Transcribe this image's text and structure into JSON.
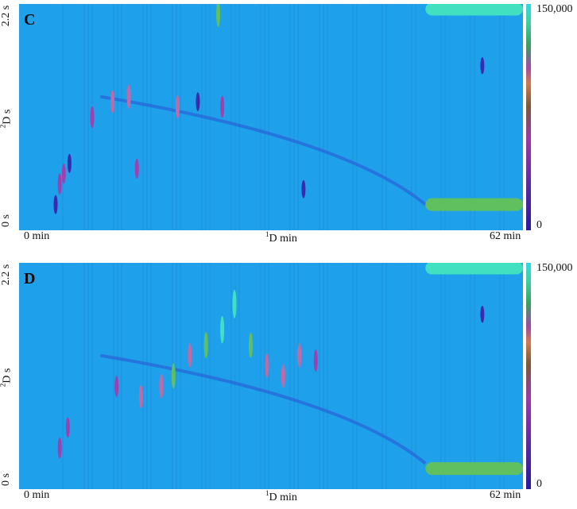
{
  "chart_data": [
    {
      "type": "heatmap",
      "panel_label": "C",
      "xlabel_prefix": "1",
      "xlabel_text": "D min",
      "ylabel_prefix": "2",
      "ylabel_text": "D s",
      "x_ticks": [
        "0 min",
        "62 min"
      ],
      "y_ticks": [
        "0 s",
        "2.2 s"
      ],
      "xlim": [
        0,
        62
      ],
      "ylim": [
        0,
        2.2
      ],
      "colorbar": {
        "ticks": [
          "0",
          "150,000"
        ],
        "range": [
          0,
          150000
        ]
      },
      "background_color": "#1fa0ea",
      "peaks": [
        {
          "x": 4.5,
          "y": 0.25,
          "intensity": 60000
        },
        {
          "x": 5.0,
          "y": 0.45,
          "intensity": 80000
        },
        {
          "x": 5.5,
          "y": 0.55,
          "intensity": 70000
        },
        {
          "x": 6.2,
          "y": 0.65,
          "intensity": 60000
        },
        {
          "x": 9.0,
          "y": 1.1,
          "intensity": 90000
        },
        {
          "x": 11.5,
          "y": 1.25,
          "intensity": 100000
        },
        {
          "x": 13.5,
          "y": 1.3,
          "intensity": 110000
        },
        {
          "x": 14.5,
          "y": 0.6,
          "intensity": 70000
        },
        {
          "x": 19.5,
          "y": 1.2,
          "intensity": 100000
        },
        {
          "x": 22.0,
          "y": 1.25,
          "intensity": 60000
        },
        {
          "x": 24.5,
          "y": 2.1,
          "intensity": 120000
        },
        {
          "x": 25.0,
          "y": 1.2,
          "intensity": 90000
        },
        {
          "x": 35.0,
          "y": 0.4,
          "intensity": 50000
        },
        {
          "x": 57.0,
          "y": 1.6,
          "intensity": 40000
        }
      ],
      "bleed_bands": [
        {
          "x_start": 50,
          "x_end": 62,
          "y": 0.25,
          "intensity": 120000
        },
        {
          "x_start": 50,
          "x_end": 62,
          "y": 2.15,
          "intensity": 150000
        }
      ]
    },
    {
      "type": "heatmap",
      "panel_label": "D",
      "xlabel_prefix": "1",
      "xlabel_text": "D min",
      "ylabel_prefix": "2",
      "ylabel_text": "D s",
      "x_ticks": [
        "0 min",
        "62 min"
      ],
      "y_ticks": [
        "0 s",
        "2.2 s"
      ],
      "xlim": [
        0,
        62
      ],
      "ylim": [
        0,
        2.2
      ],
      "colorbar": {
        "ticks": [
          "0",
          "150,000"
        ],
        "range": [
          0,
          150000
        ]
      },
      "background_color": "#1fa0ea",
      "peaks": [
        {
          "x": 5.0,
          "y": 0.4,
          "intensity": 80000
        },
        {
          "x": 6.0,
          "y": 0.6,
          "intensity": 70000
        },
        {
          "x": 12.0,
          "y": 1.0,
          "intensity": 80000
        },
        {
          "x": 15.0,
          "y": 0.9,
          "intensity": 100000
        },
        {
          "x": 17.5,
          "y": 1.0,
          "intensity": 110000
        },
        {
          "x": 19.0,
          "y": 1.1,
          "intensity": 120000
        },
        {
          "x": 21.0,
          "y": 1.3,
          "intensity": 110000
        },
        {
          "x": 23.0,
          "y": 1.4,
          "intensity": 130000
        },
        {
          "x": 25.0,
          "y": 1.55,
          "intensity": 140000
        },
        {
          "x": 26.5,
          "y": 1.8,
          "intensity": 150000
        },
        {
          "x": 28.5,
          "y": 1.4,
          "intensity": 120000
        },
        {
          "x": 30.5,
          "y": 1.2,
          "intensity": 110000
        },
        {
          "x": 32.5,
          "y": 1.1,
          "intensity": 100000
        },
        {
          "x": 34.5,
          "y": 1.3,
          "intensity": 110000
        },
        {
          "x": 36.5,
          "y": 1.25,
          "intensity": 90000
        },
        {
          "x": 57.0,
          "y": 1.7,
          "intensity": 40000
        }
      ],
      "bleed_bands": [
        {
          "x_start": 50,
          "x_end": 62,
          "y": 0.2,
          "intensity": 120000
        },
        {
          "x_start": 50,
          "x_end": 62,
          "y": 2.15,
          "intensity": 150000
        }
      ]
    }
  ]
}
